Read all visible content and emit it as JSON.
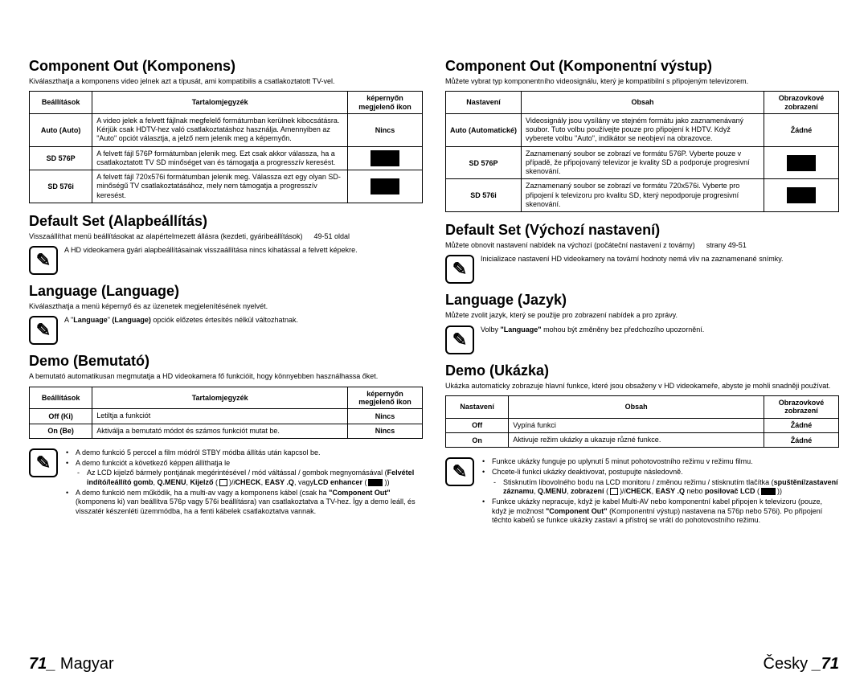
{
  "left": {
    "sec1": {
      "title": "Component Out (Komponens)",
      "sub": "Kiválaszthatja a komponens video jelnek azt a típusát, ami kompatibilis a csatlakoztatott TV-vel.",
      "th1": "Beállítások",
      "th2": "Tartalomjegyzék",
      "th3": "képernyőn megjelenő ikon",
      "r1_label": "Auto (Auto)",
      "r1_desc": "A video jelek a felvett fájlnak megfelelő formátumban kerülnek kibocsátásra. Kérjük csak HDTV-hez való csatlakoztatáshoz használja. Amennyiben az \"Auto\" opciót választja, a jelző nem jelenik meg a képernyőn.",
      "r1_icon": "Nincs",
      "r2_label": "SD 576P",
      "r2_desc": "A felvett fájl 576P formátumban jelenik meg. Ezt csak akkor válassza, ha a csatlakoztatott TV SD minőséget van és támogatja a progresszív keresést.",
      "r3_label": "SD 576i",
      "r3_desc": "A felvett fájl 720x576i formátumban jelenik meg. Válassza ezt egy olyan SD-minőségű TV csatlakoztatásához, mely nem támogatja a progresszív keresést."
    },
    "sec2": {
      "title": "Default Set (Alapbeállítás)",
      "sub": "Visszaállíthat menü beállításokat az alapértelmezett állásra (kezdeti, gyáribeállítások)",
      "pageref": "49-51 oldal",
      "note": "A HD videokamera gyári alapbeállításainak visszaállítása nincs kihatással a felvett képekre."
    },
    "sec3": {
      "title": "Language (Language)",
      "sub": "Kiválaszthatja a menü képernyő és az üzenetek megjelenítésének nyelvét.",
      "note_html": "A \"<b>Language</b>\" <b>(Language)</b> opciók előzetes értesítés nélkül változhatnak."
    },
    "sec4": {
      "title": "Demo (Bemutató)",
      "sub": "A bemutató automatikusan megmutatja a HD videokamera fő funkcióit, hogy könnyebben használhassa őket.",
      "th1": "Beállítások",
      "th2": "Tartalomjegyzék",
      "th3": "képernyőn megjelenő ikon",
      "r1_label": "Off (Ki)",
      "r1_desc": "Letiltja a funkciót",
      "r1_icon": "Nincs",
      "r2_label": "On (Be)",
      "r2_desc": "Aktiválja a bemutató módot és számos funkciót mutat be.",
      "r2_icon": "Nincs",
      "note1": "A demo funkció 5 perccel a film módról STBY módba állítás után kapcsol be.",
      "note2": "A demo funkciót a következő képpen állíthatja le",
      "note3_html": "Az LCD kijelző bármely pontjának megérintésével / mód váltással / gombok megnyomásával (<b>Felvétel indító/leállító gomb</b>, <b>Q.MENU</b>, <b>Kijelző</b> (<span class=\"inline-square\"></span>)/<i>i</i><b>CHECK</b>, <b>EASY .Q</b>, vagy<b>LCD enhancer</b> (<span class=\"inline-rect\"></span>))",
      "note4_html": "A demo funkció nem működik, ha a multi-av vagy a komponens kábel (csak ha <b>\"Component Out\"</b> (komponens ki) van beállítva 576p vagy 576i beállításra) van csatlakoztatva a TV-hez.  Így a demo leáll, és visszatér készenléti üzemmódba, ha a fenti kábelek csatlakoztatva vannak."
    },
    "footer_num": "71_",
    "footer_lang": " Magyar"
  },
  "right": {
    "sec1": {
      "title": "Component Out (Komponentní výstup)",
      "sub": "Můžete vybrat typ komponentního videosignálu, který je kompatibilní s připojeným televizorem.",
      "th1": "Nastavení",
      "th2": "Obsah",
      "th3": "Obrazovkové zobrazení",
      "r1_label": "Auto (Automatické)",
      "r1_desc": "Videosignály jsou vysílány ve stejném formátu jako zaznamenávaný soubor. Tuto volbu používejte pouze pro připojení k HDTV. Když vyberete volbu \"Auto\", indikátor se neobjeví na obrazovce.",
      "r1_icon": "Žádné",
      "r2_label": "SD 576P",
      "r2_desc": "Zaznamenaný soubor se zobrazí ve formátu 576P. Vyberte pouze v případě, že připojovaný televizor je kvality SD a podporuje progresivní skenování.",
      "r3_label": "SD 576i",
      "r3_desc": "Zaznamenaný soubor se zobrazí ve formátu 720x576i. Vyberte pro připojení k televizoru pro kvalitu SD, který nepodporuje progresivní skenování."
    },
    "sec2": {
      "title": "Default Set (Výchozí nastavení)",
      "sub": "Můžete obnovit nastavení nabídek na výchozí (počáteční nastavení z továrny)",
      "pageref": "strany 49-51",
      "note": "Inicializace nastavení HD videokamery na tovární hodnoty nemá vliv na zaznamenané snímky."
    },
    "sec3": {
      "title": "Language (Jazyk)",
      "sub": "Můžete zvolit jazyk, který se použije pro zobrazení nabídek a pro zprávy.",
      "note_html": "Volby <b>\"Language\"</b> mohou být změněny bez předchozího upozornění."
    },
    "sec4": {
      "title": "Demo (Ukázka)",
      "sub": "Ukázka automaticky zobrazuje hlavní funkce, které jsou obsaženy v HD videokameře, abyste je mohli snadněji používat.",
      "th1": "Nastavení",
      "th2": "Obsah",
      "th3": "Obrazovkové zobrazení",
      "r1_label": "Off",
      "r1_desc": "Vypíná funkci",
      "r1_icon": "Žádné",
      "r2_label": "On",
      "r2_desc": "Aktivuje režim ukázky a ukazuje různé funkce.",
      "r2_icon": "Žádné",
      "note1": "Funkce ukázky funguje po uplynutí 5 minut pohotovostního režimu v režimu filmu.",
      "note2": "Chcete-li funkci ukázky deaktivovat, postupujte následovně.",
      "note3_html": "Stisknutím libovolného bodu na LCD monitoru / změnou režimu / stisknutím tlačítka (<b>spuštění/zastavení záznamu</b>, <b>Q.MENU</b>, <b>zobrazení</b> (<span class=\"inline-square\"></span>)/<i>i</i><b>CHECK</b>, <b>EASY .Q</b> nebo <b>posilovač LCD</b> (<span class=\"inline-rect\"></span>))",
      "note4_html": "Funkce ukázky nepracuje, když je kabel Multi-AV nebo komponentní kabel připojen k televizoru (pouze, když je možnost <b>\"Component Out\"</b> (Komponentní výstup) nastavena na 576p nebo 576i). Po připojení těchto kabelů se funkce ukázky zastaví a přístroj se vrátí do pohotovostního režimu."
    },
    "footer_lang": "Česky ",
    "footer_num": "_71"
  }
}
